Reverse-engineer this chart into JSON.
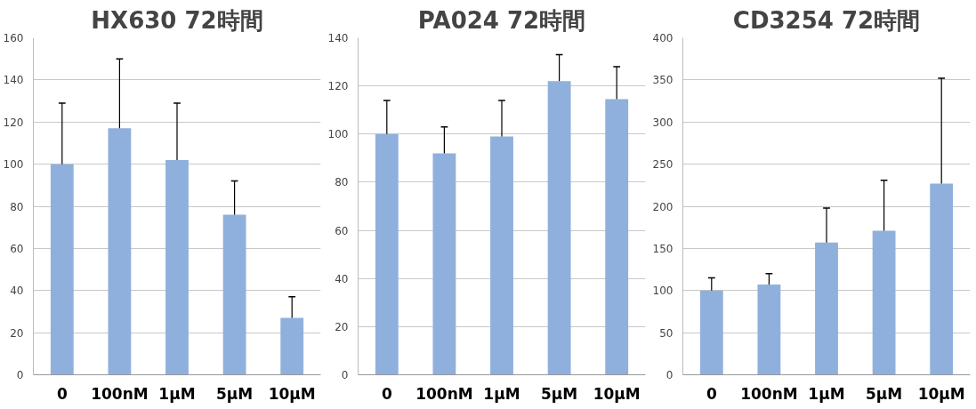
{
  "chart_data": [
    {
      "type": "bar",
      "title": "HX630 72時間",
      "categories": [
        "0",
        "100nM",
        "1μM",
        "5μM",
        "10μM"
      ],
      "values": [
        100,
        117,
        102,
        76,
        27
      ],
      "errors": [
        [
          100,
          129
        ],
        [
          117,
          150
        ],
        [
          102,
          129
        ],
        [
          76,
          92
        ],
        [
          27,
          37
        ]
      ],
      "color": "#8fb0dc",
      "ylim": [
        0,
        160
      ],
      "yticks": [
        0,
        20,
        40,
        60,
        80,
        100,
        120,
        140,
        160
      ],
      "grid": "y"
    },
    {
      "type": "bar",
      "title": "PA024 72時間",
      "categories": [
        "0",
        "100nM",
        "1μM",
        "5μM",
        "10μM"
      ],
      "values": [
        100,
        92,
        99,
        122,
        114.5
      ],
      "errors": [
        [
          100,
          114
        ],
        [
          92,
          103
        ],
        [
          99,
          114
        ],
        [
          122,
          133
        ],
        [
          114.5,
          128
        ]
      ],
      "color": "#8fb0dc",
      "ylim": [
        0,
        140
      ],
      "yticks": [
        0,
        20,
        40,
        60,
        80,
        100,
        120,
        140
      ],
      "grid": "y"
    },
    {
      "type": "bar",
      "title": "CD3254 72時間",
      "categories": [
        "0",
        "100nM",
        "1μM",
        "5μM",
        "10μM"
      ],
      "values": [
        100,
        107,
        157,
        171,
        227
      ],
      "errors": [
        [
          100,
          115
        ],
        [
          107,
          120
        ],
        [
          157,
          198
        ],
        [
          171,
          231
        ],
        [
          227,
          352
        ]
      ],
      "color": "#8fb0dc",
      "ylim": [
        0,
        400
      ],
      "yticks": [
        0,
        50,
        100,
        150,
        200,
        250,
        300,
        350,
        400
      ],
      "grid": "y"
    }
  ]
}
